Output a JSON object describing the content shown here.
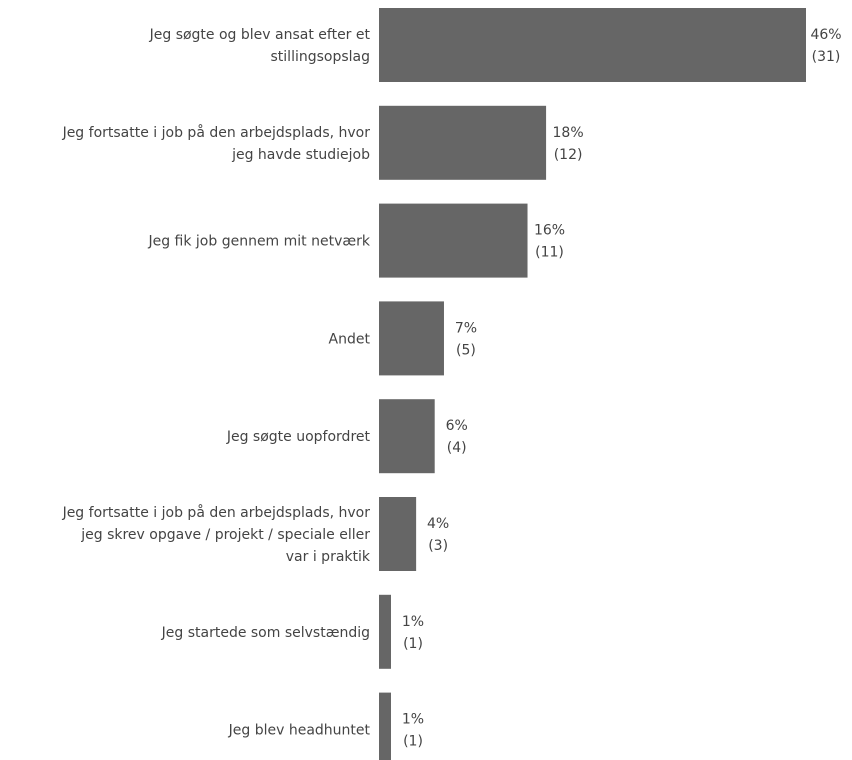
{
  "chart_data": {
    "type": "bar",
    "orientation": "horizontal",
    "categories": [
      [
        "Jeg søgte og blev ansat efter et",
        "stillingsopslag"
      ],
      [
        "Jeg fortsatte i job på den arbejdsplads, hvor",
        "jeg havde studiejob"
      ],
      [
        "Jeg fik job gennem mit netværk"
      ],
      [
        "Andet"
      ],
      [
        "Jeg søgte uopfordret"
      ],
      [
        "Jeg fortsatte i job på den arbejdsplads, hvor",
        "jeg skrev opgave / projekt / speciale eller",
        "var i praktik"
      ],
      [
        "Jeg startede som selvstændig"
      ],
      [
        "Jeg blev headhuntet"
      ]
    ],
    "values": [
      46,
      18,
      16,
      7,
      6,
      4,
      1,
      1
    ],
    "percent_labels": [
      "46%",
      "18%",
      "16%",
      "7%",
      "6%",
      "4%",
      "1%",
      "1%"
    ],
    "count_labels": [
      "(31)",
      "(12)",
      "(11)",
      "(5)",
      "(4)",
      "(3)",
      "(1)",
      "(1)"
    ],
    "xlim": [
      0,
      46
    ],
    "grid": false,
    "legend": "none",
    "bar_color": "#666666",
    "text_color": "#444444"
  }
}
